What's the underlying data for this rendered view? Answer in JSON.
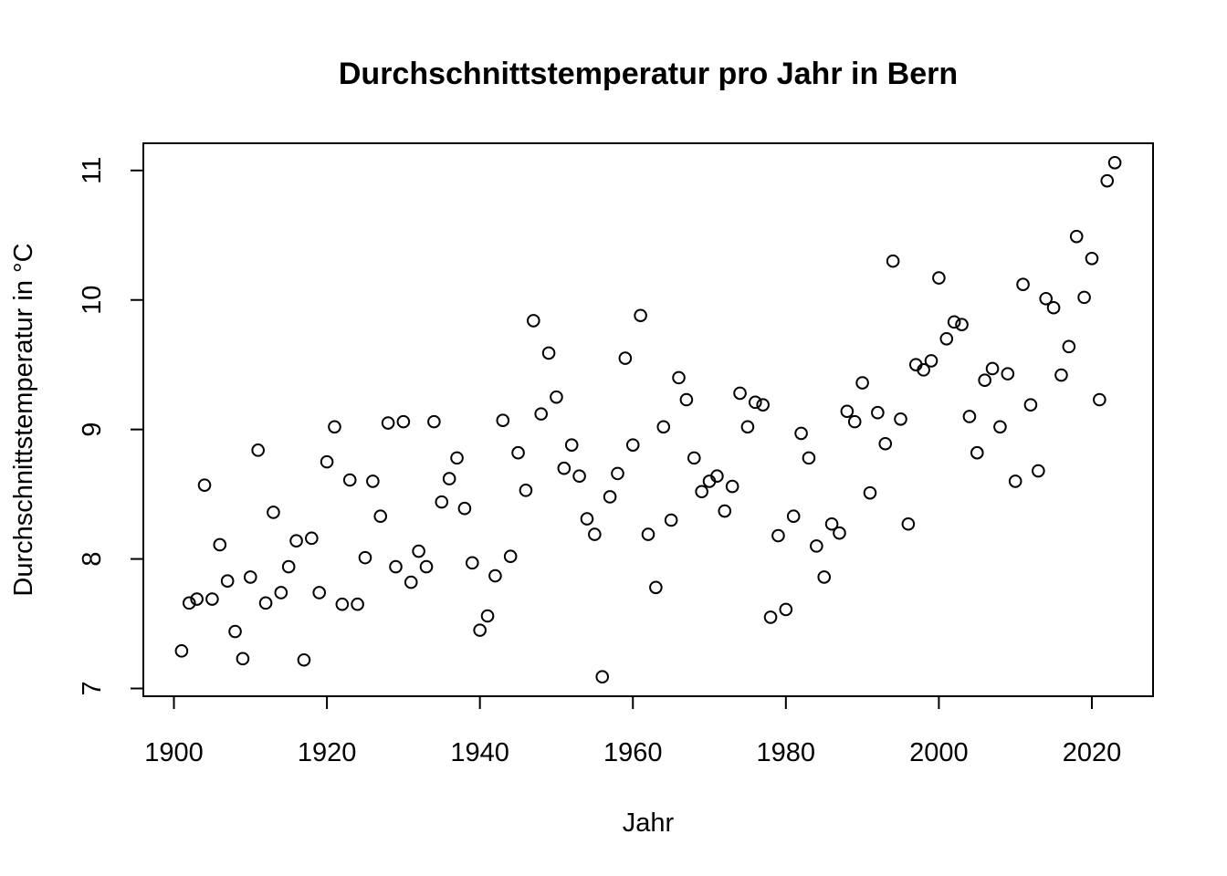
{
  "chart_data": {
    "type": "scatter",
    "title": "Durchschnittstemperatur pro Jahr in Bern",
    "xlabel": "Jahr",
    "ylabel": "Durchschnittstemperatur in °C",
    "xlim": [
      1896,
      2028
    ],
    "ylim": [
      6.94,
      11.21
    ],
    "xticks": [
      1900,
      1920,
      1940,
      1960,
      1980,
      2000,
      2020
    ],
    "yticks": [
      7,
      8,
      9,
      10,
      11
    ],
    "grid": false,
    "legend": "none",
    "x": [
      1901,
      1902,
      1903,
      1904,
      1905,
      1906,
      1907,
      1908,
      1909,
      1910,
      1911,
      1912,
      1913,
      1914,
      1915,
      1916,
      1917,
      1918,
      1919,
      1920,
      1921,
      1922,
      1923,
      1924,
      1925,
      1926,
      1927,
      1928,
      1929,
      1930,
      1931,
      1932,
      1933,
      1934,
      1935,
      1936,
      1937,
      1938,
      1939,
      1940,
      1941,
      1942,
      1943,
      1944,
      1945,
      1946,
      1947,
      1948,
      1949,
      1950,
      1951,
      1952,
      1953,
      1954,
      1955,
      1956,
      1957,
      1958,
      1959,
      1960,
      1961,
      1962,
      1963,
      1964,
      1965,
      1966,
      1967,
      1968,
      1969,
      1970,
      1971,
      1972,
      1973,
      1974,
      1975,
      1976,
      1977,
      1978,
      1979,
      1980,
      1981,
      1982,
      1983,
      1984,
      1985,
      1986,
      1987,
      1988,
      1989,
      1990,
      1991,
      1992,
      1993,
      1994,
      1995,
      1996,
      1997,
      1998,
      1999,
      2000,
      2001,
      2002,
      2003,
      2004,
      2005,
      2006,
      2007,
      2008,
      2009,
      2010,
      2011,
      2012,
      2013,
      2014,
      2015,
      2016,
      2017,
      2018,
      2019,
      2020,
      2021,
      2022,
      2023
    ],
    "y": [
      7.29,
      7.66,
      7.69,
      8.57,
      7.69,
      8.11,
      7.83,
      7.44,
      7.23,
      7.86,
      8.84,
      7.66,
      8.36,
      7.74,
      7.94,
      8.14,
      7.22,
      8.16,
      7.74,
      8.75,
      9.02,
      7.65,
      8.61,
      7.65,
      8.01,
      8.6,
      8.33,
      9.05,
      7.94,
      9.06,
      7.82,
      8.06,
      7.94,
      9.06,
      8.44,
      8.62,
      8.78,
      8.39,
      7.97,
      7.45,
      7.56,
      7.87,
      9.07,
      8.02,
      8.82,
      8.53,
      9.84,
      9.12,
      9.59,
      9.25,
      8.7,
      8.88,
      8.64,
      8.31,
      8.19,
      7.09,
      8.48,
      8.66,
      9.55,
      8.88,
      9.88,
      8.19,
      7.78,
      9.02,
      8.3,
      9.4,
      9.23,
      8.78,
      8.52,
      8.6,
      8.64,
      8.37,
      8.56,
      9.28,
      9.02,
      9.21,
      9.19,
      7.55,
      8.18,
      7.61,
      8.33,
      8.97,
      8.78,
      8.1,
      7.86,
      8.27,
      8.2,
      9.14,
      9.06,
      9.36,
      8.51,
      9.13,
      8.89,
      10.3,
      9.08,
      8.27,
      9.5,
      9.46,
      9.53,
      10.17,
      9.7,
      9.83,
      9.81,
      9.1,
      8.82,
      9.38,
      9.47,
      9.02,
      9.43,
      8.6,
      10.12,
      9.19,
      8.68,
      10.01,
      9.94,
      9.42,
      9.64,
      10.49,
      10.02,
      10.32,
      9.23,
      10.92,
      11.06
    ]
  }
}
